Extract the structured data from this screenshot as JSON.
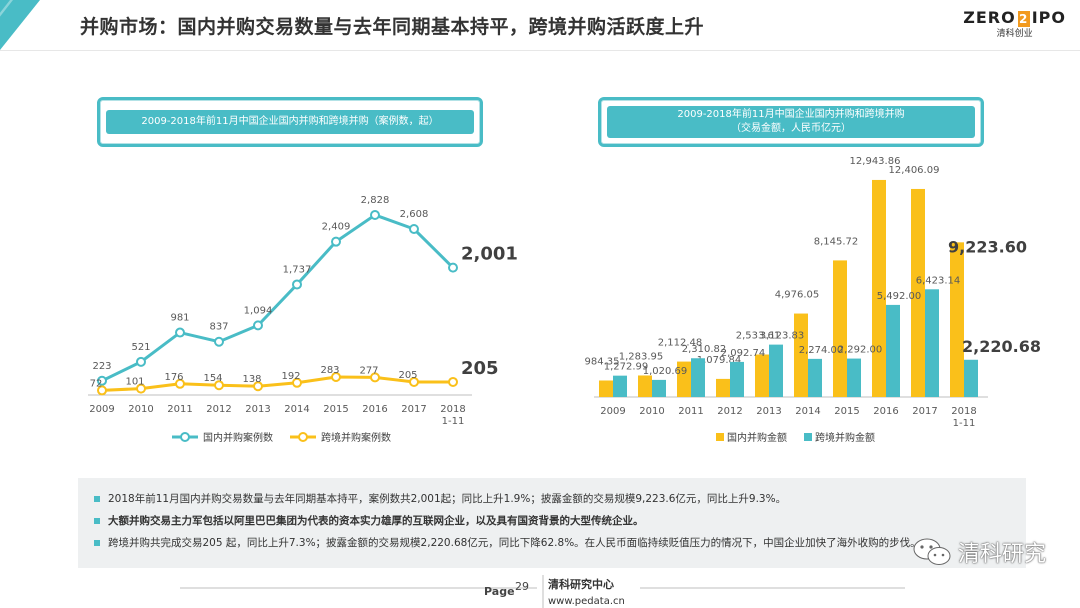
{
  "header": {
    "title": "并购市场：国内并购交易数量与去年同期基本持平，跨境并购活跃度上升",
    "logo_main_left": "ZERO",
    "logo_main_mid": "2",
    "logo_main_right": "IPO",
    "logo_sub": "清科创业"
  },
  "colors": {
    "teal": "#49bcc6",
    "yellow": "#fac01a",
    "axis": "#bfbfbf",
    "text": "#595959"
  },
  "left_chart": {
    "title": "2009-2018年前11月中国企业国内并购和跨境并购（案例数，起）"
  },
  "right_chart": {
    "title_line1": "2009-2018年前11月中国企业国内并购和跨境并购",
    "title_line2": "（交易金额，人民币亿元）"
  },
  "chart_data": [
    {
      "type": "line",
      "title": "2009-2018年前11月中国企业国内并购和跨境并购（案例数，起）",
      "categories": [
        "2009",
        "2010",
        "2011",
        "2012",
        "2013",
        "2014",
        "2015",
        "2016",
        "2017",
        "2018\n1-11"
      ],
      "series": [
        {
          "name": "国内并购案例数",
          "values": [
            223,
            521,
            981,
            837,
            1094,
            1737,
            2409,
            2828,
            2608,
            2001
          ],
          "labels": [
            "223",
            "521",
            "981",
            "837",
            "1,094",
            "1,737",
            "2,409",
            "2,828",
            "2,608",
            "2,001"
          ],
          "color": "#49bcc6"
        },
        {
          "name": "跨境并购案例数",
          "values": [
            72,
            101,
            176,
            154,
            138,
            192,
            283,
            277,
            205,
            205
          ],
          "labels": [
            "72",
            "101",
            "176",
            "154",
            "138",
            "192",
            "283",
            "277",
            "205",
            "205"
          ],
          "color": "#fac01a"
        }
      ],
      "ylim": [
        0,
        3000
      ],
      "legend": "bottom"
    },
    {
      "type": "bar",
      "title": "2009-2018年前11月中国企业国内并购和跨境并购（交易金额，人民币亿元）",
      "categories": [
        "2009",
        "2010",
        "2011",
        "2012",
        "2013",
        "2014",
        "2015",
        "2016",
        "2017",
        "2018\n1-11"
      ],
      "series": [
        {
          "name": "国内并购金额",
          "values": [
            984.35,
            1283.95,
            2112.48,
            1079.84,
            2533.61,
            4976.05,
            8145.72,
            12943.86,
            12406.09,
            9223.6
          ],
          "labels": [
            "984.35",
            "1,283.95",
            "2,112.48",
            "1,079.84",
            "2,533.61",
            "4,976.05",
            "8,145.72",
            "12,943.86",
            "12,406.09",
            "9,223.60"
          ],
          "color": "#fac01a"
        },
        {
          "name": "跨境并购金额",
          "values": [
            1272.99,
            1020.69,
            2310.82,
            2092.74,
            3123.83,
            2274.0,
            2292.0,
            5492.0,
            6423.14,
            2220.68
          ],
          "labels": [
            "1,272.99",
            "1,020.69",
            "2,310.82",
            "2,092.74",
            "3,123.83",
            "2,274.00",
            "2,292.00",
            "5,492.00",
            "6,423.14",
            "2,220.68"
          ],
          "color": "#49bcc6"
        }
      ],
      "ylim": [
        0,
        13000
      ],
      "legend": "bottom"
    }
  ],
  "notes": [
    "2018年前11月国内并购交易数量与去年同期基本持平，案例数共2,001起；同比上升1.9%；披露金额的交易规模9,223.6亿元，同比上升9.3%。",
    "大额并购交易主力军包括以阿里巴巴集团为代表的资本实力雄厚的互联网企业，以及具有国资背景的大型传统企业。",
    "跨境并购共完成交易205 起，同比上升7.3%；披露金额的交易规模2,220.68亿元，同比下降62.8%。在人民币面临持续贬值压力的情况下，中国企业加快了海外收购的步伐。"
  ],
  "footer": {
    "page_label": "Page",
    "page_number": "29",
    "org_name": "清科研究中心",
    "org_url": "www.pedata.cn"
  },
  "watermark": {
    "text": "清科研究"
  }
}
